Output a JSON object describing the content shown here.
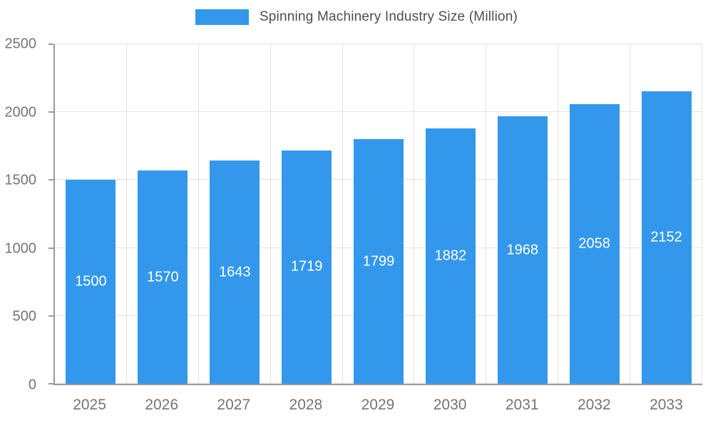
{
  "legend": {
    "label": "Spinning Machinery Industry Size (Million)"
  },
  "colors": {
    "bar": "#3398EC",
    "grid": "#e3e3e3",
    "axis": "#9b9b9b",
    "tick_text": "#757575",
    "legend_text": "#4e4e4e",
    "value_text": "#ffffff"
  },
  "chart_data": {
    "type": "bar",
    "title": "Spinning Machinery Industry Size (Million)",
    "categories": [
      "2025",
      "2026",
      "2027",
      "2028",
      "2029",
      "2030",
      "2031",
      "2032",
      "2033"
    ],
    "values": [
      1500,
      1570,
      1643,
      1719,
      1799,
      1882,
      1968,
      2058,
      2152
    ],
    "xlabel": "",
    "ylabel": "",
    "ylim": [
      0,
      2500
    ],
    "yticks": [
      0,
      500,
      1000,
      1500,
      2000,
      2500
    ],
    "grid": true,
    "legend_position": "top",
    "value_labels": "inside-center"
  }
}
